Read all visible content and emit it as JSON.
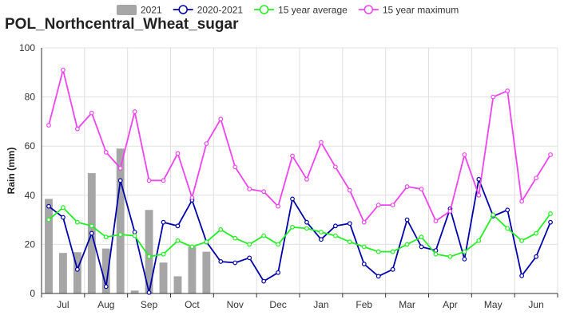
{
  "chart_data": {
    "type": "bar+line",
    "title": "POL_Northcentral_Wheat_sugar",
    "ylabel": "Rain (mm)",
    "xlabel": "",
    "ylim": [
      0,
      100
    ],
    "yticks": [
      0,
      20,
      40,
      60,
      80,
      100
    ],
    "grid": true,
    "legend_position": "top-center",
    "month_labels": [
      "Jul",
      "Aug",
      "Sep",
      "Oct",
      "Nov",
      "Dec",
      "Jan",
      "Feb",
      "Mar",
      "Apr",
      "May",
      "Jun"
    ],
    "periods_per_month": 3,
    "series": [
      {
        "name": "2021",
        "kind": "bar",
        "color": "#a6a6a6",
        "values": [
          38.5,
          16.5,
          16.8,
          49,
          18.3,
          59,
          1.2,
          34,
          12.6,
          7,
          19,
          17
        ]
      },
      {
        "name": "2020-2021",
        "kind": "line",
        "color": "#0000aa",
        "values": [
          35.5,
          31,
          9.8,
          24.5,
          2.8,
          46,
          25,
          0.4,
          29,
          27.5,
          38,
          21,
          13,
          12.5,
          14.5,
          5,
          8.5,
          38.5,
          29,
          22,
          27.5,
          28.5,
          12,
          7,
          9.8,
          30,
          19,
          17.5,
          34.5,
          14,
          46.5,
          31.5,
          34,
          7.2,
          15,
          29
        ]
      },
      {
        "name": "15 year average",
        "kind": "line",
        "color": "#22ee22",
        "values": [
          30,
          35,
          29,
          27.5,
          23,
          24,
          23.5,
          15,
          16,
          21.5,
          19,
          21,
          26,
          22.5,
          20,
          23.5,
          20,
          27,
          26.5,
          25,
          23.5,
          21,
          19,
          17,
          17,
          20,
          23,
          16,
          15,
          17,
          21.5,
          32,
          26.5,
          21.5,
          24.5,
          32.5
        ]
      },
      {
        "name": "15 year maximum",
        "kind": "line",
        "color": "#ee44ee",
        "values": [
          68.5,
          91,
          67,
          73.5,
          57.5,
          51,
          74,
          46,
          46,
          57,
          39,
          61,
          71,
          51.5,
          42.5,
          41.5,
          35.5,
          56,
          46.5,
          61.5,
          51.5,
          42,
          29,
          36,
          36,
          43.5,
          42.5,
          29.5,
          33.5,
          56.5,
          40,
          80,
          82.5,
          37.5,
          47,
          56.5
        ]
      }
    ]
  }
}
